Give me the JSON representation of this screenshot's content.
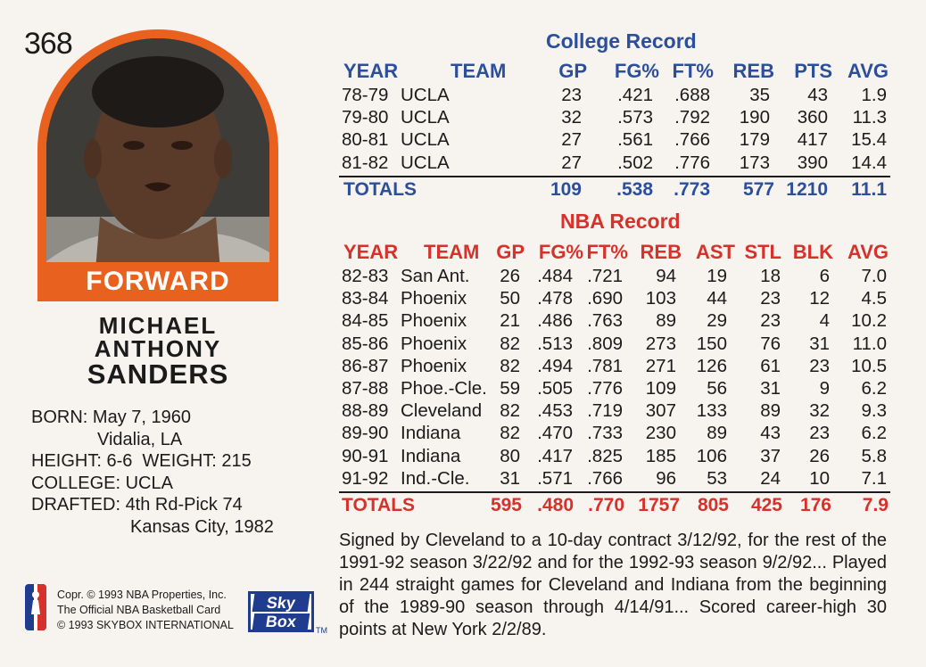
{
  "card_number": "368",
  "position": "FORWARD",
  "name": {
    "first": "MICHAEL",
    "middle": "ANTHONY",
    "last": "SANDERS"
  },
  "bio": {
    "born_label": "BORN:",
    "born_date": "May 7, 1960",
    "born_place": "Vidalia, LA",
    "height_label": "HEIGHT:",
    "height": "6-6",
    "weight_label": "WEIGHT:",
    "weight": "215",
    "college_label": "COLLEGE:",
    "college": "UCLA",
    "drafted_label": "DRAFTED:",
    "drafted": "4th Rd-Pick 74",
    "drafted_team": "Kansas City, 1982"
  },
  "legal": {
    "line1": "Copr. © 1993 NBA Properties, Inc.",
    "line2": "The Official NBA Basketball Card",
    "line3": "© 1993 SKYBOX INTERNATIONAL",
    "brand_top": "Sky",
    "brand_bottom": "Box",
    "tm": "TM"
  },
  "colors": {
    "orange": "#e8611f",
    "blue": "#2c4f9c",
    "red": "#d6312b",
    "background": "#f7f3ee"
  },
  "college_record": {
    "title": "College Record",
    "headers": [
      "YEAR",
      "TEAM",
      "GP",
      "FG%",
      "FT%",
      "REB",
      "PTS",
      "AVG"
    ],
    "rows": [
      [
        "78-79",
        "UCLA",
        "23",
        ".421",
        ".688",
        "35",
        "43",
        "1.9"
      ],
      [
        "79-80",
        "UCLA",
        "32",
        ".573",
        ".792",
        "190",
        "360",
        "11.3"
      ],
      [
        "80-81",
        "UCLA",
        "27",
        ".561",
        ".766",
        "179",
        "417",
        "15.4"
      ],
      [
        "81-82",
        "UCLA",
        "27",
        ".502",
        ".776",
        "173",
        "390",
        "14.4"
      ]
    ],
    "totals": [
      "TOTALS",
      "109",
      ".538",
      ".773",
      "577",
      "1210",
      "11.1"
    ]
  },
  "nba_record": {
    "title": "NBA Record",
    "headers": [
      "YEAR",
      "TEAM",
      "GP",
      "FG%",
      "FT%",
      "REB",
      "AST",
      "STL",
      "BLK",
      "AVG"
    ],
    "rows": [
      [
        "82-83",
        "San Ant.",
        "26",
        ".484",
        ".721",
        "94",
        "19",
        "18",
        "6",
        "7.0"
      ],
      [
        "83-84",
        "Phoenix",
        "50",
        ".478",
        ".690",
        "103",
        "44",
        "23",
        "12",
        "4.5"
      ],
      [
        "84-85",
        "Phoenix",
        "21",
        ".486",
        ".763",
        "89",
        "29",
        "23",
        "4",
        "10.2"
      ],
      [
        "85-86",
        "Phoenix",
        "82",
        ".513",
        ".809",
        "273",
        "150",
        "76",
        "31",
        "11.0"
      ],
      [
        "86-87",
        "Phoenix",
        "82",
        ".494",
        ".781",
        "271",
        "126",
        "61",
        "23",
        "10.5"
      ],
      [
        "87-88",
        "Phoe.-Cle.",
        "59",
        ".505",
        ".776",
        "109",
        "56",
        "31",
        "9",
        "6.2"
      ],
      [
        "88-89",
        "Cleveland",
        "82",
        ".453",
        ".719",
        "307",
        "133",
        "89",
        "32",
        "9.3"
      ],
      [
        "89-90",
        "Indiana",
        "82",
        ".470",
        ".733",
        "230",
        "89",
        "43",
        "23",
        "6.2"
      ],
      [
        "90-91",
        "Indiana",
        "80",
        ".417",
        ".825",
        "185",
        "106",
        "37",
        "26",
        "5.8"
      ],
      [
        "91-92",
        "Ind.-Cle.",
        "31",
        ".571",
        ".766",
        "96",
        "53",
        "24",
        "10",
        "7.1"
      ]
    ],
    "totals": [
      "TOTALS",
      "595",
      ".480",
      ".770",
      "1757",
      "805",
      "425",
      "176",
      "7.9"
    ]
  },
  "notes": "Signed by Cleveland to a 10-day contract 3/12/92, for the rest of the 1991-92 season 3/22/92 and for the 1992-93 season 9/2/92... Played in 244 straight games for Cleveland and Indiana from the beginning of the 1989-90 season through 4/14/91... Scored career-high 30 points at New York 2/2/89."
}
